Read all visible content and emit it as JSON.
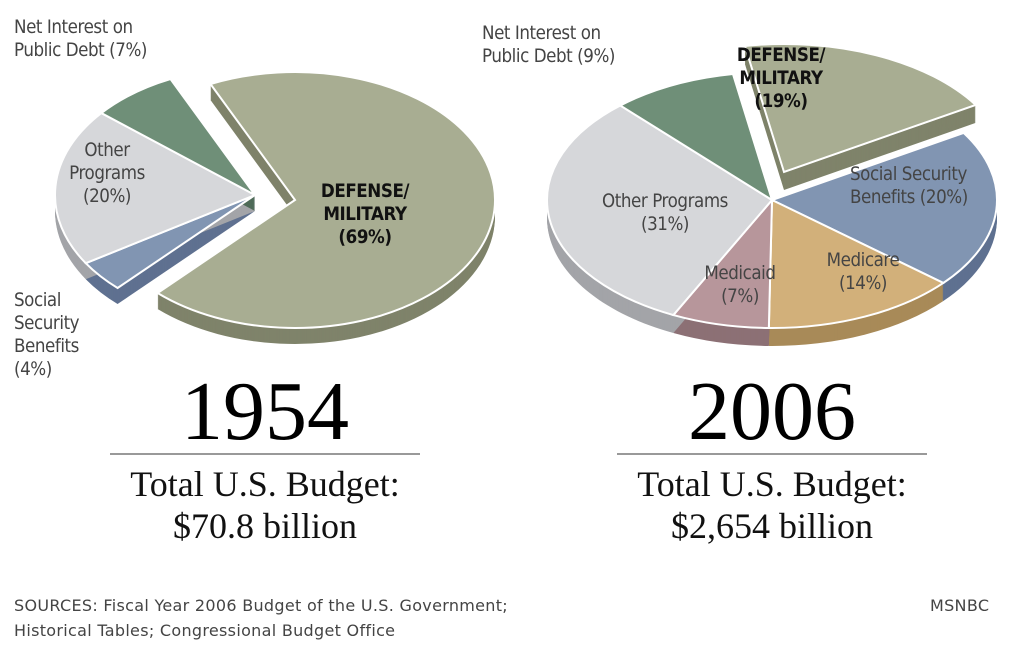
{
  "chart_data": [
    {
      "type": "pie",
      "title": "1954",
      "subtitle": "Total U.S. Budget:",
      "total": "$70.8 billion",
      "slices": [
        {
          "label": "DEFENSE/ MILITARY",
          "value": 69,
          "text": "(69%)",
          "color": "#a8ad92",
          "side": "#7f836a",
          "exploded": true
        },
        {
          "label": "Social Security Benefits",
          "value": 4,
          "text": "(4%)",
          "color": "#8195b2",
          "side": "#5f7190"
        },
        {
          "label": "Other Programs",
          "value": 20,
          "text": "(20%)",
          "color": "#d6d7da",
          "side": "#a3a4a8"
        },
        {
          "label": "Net Interest on Public Debt",
          "value": 7,
          "text": "(7%)",
          "color": "#6f8f78",
          "side": "#4f6b58"
        }
      ]
    },
    {
      "type": "pie",
      "title": "2006",
      "subtitle": "Total U.S. Budget:",
      "total": "$2,654 billion",
      "slices": [
        {
          "label": "DEFENSE/ MILITARY",
          "value": 19,
          "text": "(19%)",
          "color": "#a8ad92",
          "side": "#7f836a",
          "exploded": true
        },
        {
          "label": "Social Security Benefits",
          "value": 20,
          "text": "(20%)",
          "color": "#8195b2",
          "side": "#5f7190"
        },
        {
          "label": "Medicare",
          "value": 14,
          "text": "(14%)",
          "color": "#d2b07a",
          "side": "#a88a58"
        },
        {
          "label": "Medicaid",
          "value": 7,
          "text": "(7%)",
          "color": "#b7969b",
          "side": "#8c7075"
        },
        {
          "label": "Other Programs",
          "value": 31,
          "text": "(31%)",
          "color": "#d6d7da",
          "side": "#a3a4a8"
        },
        {
          "label": "Net Interest on Public Debt",
          "value": 9,
          "text": "(9%)",
          "color": "#6f8f78",
          "side": "#4f6b58"
        }
      ]
    }
  ],
  "labels": {
    "p1": {
      "net1": "Net Interest on",
      "net2": "Public Debt (7%)",
      "other1": "Other",
      "other2": "Programs",
      "other3": "(20%)",
      "def1": "DEFENSE/",
      "def2": "MILITARY",
      "def3": "(69%)",
      "ss1": "Social",
      "ss2": "Security",
      "ss3": "Benefits",
      "ss4": "(4%)"
    },
    "p2": {
      "net1": "Net Interest on",
      "net2": "Public Debt (9%)",
      "def1": "DEFENSE/",
      "def2": "MILITARY",
      "def3": "(19%)",
      "ss1": "Social Security",
      "ss2": "Benefits (20%)",
      "other1": "Other Programs",
      "other2": "(31%)",
      "mcaid1": "Medicaid",
      "mcaid2": "(7%)",
      "mcare1": "Medicare",
      "mcare2": "(14%)"
    }
  },
  "footer": {
    "sources1": "SOURCES: Fiscal Year 2006 Budget of the U.S. Government;",
    "sources2": "Historical Tables; Congressional Budget Office",
    "credit": "MSNBC"
  }
}
